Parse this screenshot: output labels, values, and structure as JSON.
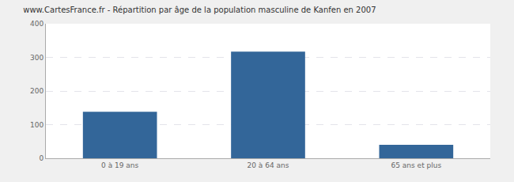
{
  "chart_data": {
    "type": "bar",
    "title": "www.CartesFrance.fr - Répartition par âge de la population masculine de Kanfen en 2007",
    "categories": [
      "0 à 19 ans",
      "20 à 64 ans",
      "65 ans et plus"
    ],
    "values": [
      138,
      317,
      40
    ],
    "color": "#336699",
    "ylim": [
      0,
      400
    ],
    "yticks": [
      0,
      100,
      200,
      300,
      400
    ],
    "grid": true
  }
}
